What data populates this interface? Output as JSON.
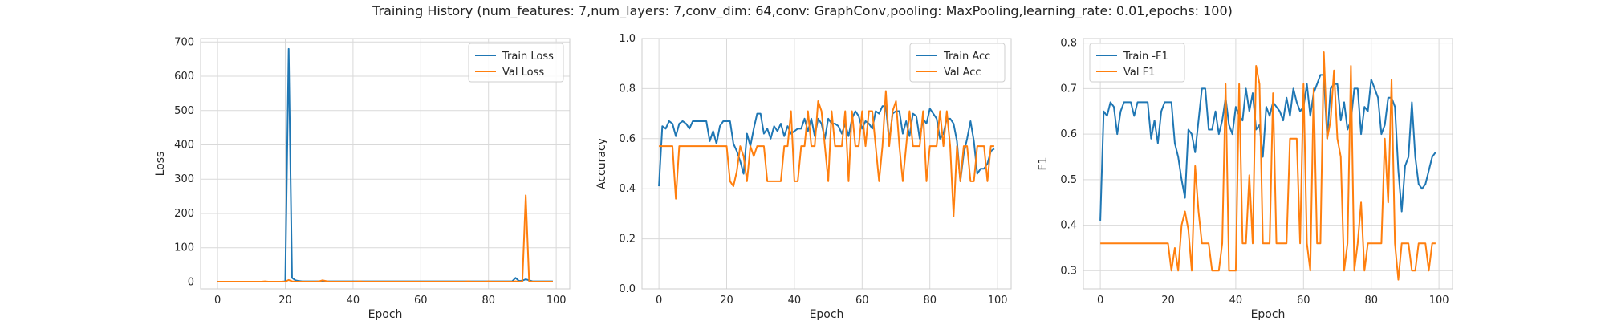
{
  "title": "Training History (num_features: 7,num_layers: 7,conv_dim: 64,conv: GraphConv,pooling: MaxPooling,learning_rate: 0.01,epochs: 100)",
  "colors": {
    "train": "#1f77b4",
    "val": "#ff7f0e",
    "grid": "#d9d9d9",
    "frame": "#cccccc"
  },
  "chart_data": [
    {
      "type": "line",
      "xlabel": "Epoch",
      "ylabel": "Loss",
      "xlim": [
        -5,
        104
      ],
      "ylim": [
        -20,
        710
      ],
      "xticks": [
        0,
        20,
        40,
        60,
        80,
        100
      ],
      "yticks": [
        0,
        100,
        200,
        300,
        400,
        500,
        600,
        700
      ],
      "grid": true,
      "legend": "top-right",
      "series": [
        {
          "name": "Train Loss",
          "values": [
            1,
            1,
            1,
            1,
            1,
            1,
            1,
            1,
            1,
            1,
            1,
            1,
            1,
            1,
            1,
            1,
            1,
            1,
            1,
            1,
            2,
            680,
            12,
            5,
            3,
            2,
            2,
            2,
            2,
            2,
            2,
            2,
            2,
            2,
            2,
            2,
            2,
            2,
            2,
            2,
            2,
            2,
            2,
            2,
            2,
            2,
            2,
            2,
            2,
            2,
            2,
            2,
            2,
            2,
            2,
            2,
            2,
            2,
            2,
            2,
            2,
            2,
            2,
            2,
            2,
            2,
            2,
            2,
            2,
            2,
            2,
            2,
            2,
            2,
            2,
            2,
            2,
            2,
            2,
            2,
            2,
            2,
            2,
            2,
            2,
            2,
            2,
            2,
            12,
            3,
            4,
            8,
            5,
            2,
            2,
            2,
            2,
            2,
            2,
            2
          ]
        },
        {
          "name": "Val Loss",
          "values": [
            1,
            1,
            1,
            1,
            1,
            1,
            1,
            1,
            1,
            1,
            1,
            1,
            1,
            1,
            2,
            1,
            1,
            1,
            1,
            1,
            1,
            6,
            2,
            1,
            1,
            1,
            1,
            1,
            1,
            1,
            2,
            5,
            3,
            1,
            1,
            1,
            1,
            1,
            1,
            1,
            1,
            1,
            2,
            1,
            1,
            1,
            1,
            1,
            1,
            1,
            1,
            1,
            1,
            1,
            1,
            1,
            1,
            1,
            1,
            1,
            1,
            1,
            1,
            1,
            1,
            1,
            1,
            1,
            1,
            1,
            1,
            1,
            1,
            1,
            2,
            1,
            1,
            1,
            1,
            1,
            2,
            1,
            1,
            1,
            1,
            1,
            1,
            1,
            2,
            1,
            2,
            253,
            2,
            1,
            1,
            1,
            1,
            1,
            1,
            1
          ]
        }
      ]
    },
    {
      "type": "line",
      "xlabel": "Epoch",
      "ylabel": "Accuracy",
      "xlim": [
        -5,
        104
      ],
      "ylim": [
        0.0,
        1.0
      ],
      "xticks": [
        0,
        20,
        40,
        60,
        80,
        100
      ],
      "yticks": [
        0.0,
        0.2,
        0.4,
        0.6,
        0.8,
        1.0
      ],
      "grid": true,
      "legend": "top-right",
      "series": [
        {
          "name": "Train Acc",
          "values": [
            0.41,
            0.65,
            0.64,
            0.67,
            0.66,
            0.61,
            0.66,
            0.67,
            0.66,
            0.64,
            0.67,
            0.67,
            0.67,
            0.67,
            0.67,
            0.59,
            0.63,
            0.58,
            0.65,
            0.67,
            0.67,
            0.67,
            0.58,
            0.55,
            0.51,
            0.46,
            0.62,
            0.57,
            0.64,
            0.7,
            0.7,
            0.62,
            0.64,
            0.6,
            0.65,
            0.63,
            0.66,
            0.61,
            0.65,
            0.62,
            0.63,
            0.64,
            0.64,
            0.68,
            0.63,
            0.68,
            0.61,
            0.68,
            0.66,
            0.6,
            0.68,
            0.66,
            0.66,
            0.65,
            0.62,
            0.66,
            0.61,
            0.68,
            0.71,
            0.69,
            0.64,
            0.67,
            0.66,
            0.64,
            0.71,
            0.7,
            0.73,
            0.73,
            0.59,
            0.7,
            0.71,
            0.71,
            0.62,
            0.67,
            0.61,
            0.7,
            0.69,
            0.6,
            0.68,
            0.66,
            0.72,
            0.7,
            0.68,
            0.6,
            0.62,
            0.68,
            0.68,
            0.66,
            0.59,
            0.43,
            0.54,
            0.6,
            0.67,
            0.59,
            0.46,
            0.48,
            0.48,
            0.5,
            0.55,
            0.56
          ]
        },
        {
          "name": "Val Acc",
          "values": [
            0.57,
            0.57,
            0.57,
            0.57,
            0.57,
            0.36,
            0.57,
            0.57,
            0.57,
            0.57,
            0.57,
            0.57,
            0.57,
            0.57,
            0.57,
            0.57,
            0.57,
            0.57,
            0.57,
            0.57,
            0.57,
            0.43,
            0.41,
            0.47,
            0.57,
            0.53,
            0.43,
            0.57,
            0.53,
            0.57,
            0.57,
            0.57,
            0.43,
            0.43,
            0.43,
            0.43,
            0.43,
            0.57,
            0.57,
            0.71,
            0.43,
            0.43,
            0.57,
            0.57,
            0.71,
            0.57,
            0.57,
            0.75,
            0.71,
            0.57,
            0.43,
            0.71,
            0.57,
            0.57,
            0.57,
            0.71,
            0.43,
            0.71,
            0.57,
            0.57,
            0.71,
            0.57,
            0.71,
            0.71,
            0.57,
            0.43,
            0.57,
            0.79,
            0.57,
            0.71,
            0.75,
            0.57,
            0.43,
            0.57,
            0.71,
            0.57,
            0.57,
            0.57,
            0.71,
            0.43,
            0.57,
            0.57,
            0.57,
            0.71,
            0.57,
            0.71,
            0.57,
            0.29,
            0.57,
            0.43,
            0.57,
            0.57,
            0.43,
            0.43,
            0.57,
            0.57,
            0.57,
            0.43,
            0.57,
            0.57
          ]
        }
      ]
    },
    {
      "type": "line",
      "xlabel": "Epoch",
      "ylabel": "F1",
      "xlim": [
        -5,
        104
      ],
      "ylim": [
        0.26,
        0.81
      ],
      "xticks": [
        0,
        20,
        40,
        60,
        80,
        100
      ],
      "yticks": [
        0.3,
        0.4,
        0.5,
        0.6,
        0.7,
        0.8
      ],
      "grid": true,
      "legend": "top-left",
      "series": [
        {
          "name": "Train -F1",
          "values": [
            0.41,
            0.65,
            0.64,
            0.67,
            0.66,
            0.6,
            0.65,
            0.67,
            0.67,
            0.67,
            0.64,
            0.67,
            0.67,
            0.67,
            0.67,
            0.59,
            0.63,
            0.58,
            0.65,
            0.67,
            0.67,
            0.67,
            0.58,
            0.55,
            0.5,
            0.46,
            0.61,
            0.6,
            0.56,
            0.63,
            0.7,
            0.7,
            0.61,
            0.61,
            0.65,
            0.6,
            0.63,
            0.68,
            0.62,
            0.6,
            0.66,
            0.64,
            0.63,
            0.7,
            0.65,
            0.69,
            0.61,
            0.62,
            0.55,
            0.66,
            0.64,
            0.67,
            0.66,
            0.65,
            0.63,
            0.68,
            0.64,
            0.7,
            0.67,
            0.65,
            0.66,
            0.71,
            0.64,
            0.69,
            0.71,
            0.73,
            0.73,
            0.59,
            0.7,
            0.71,
            0.71,
            0.63,
            0.67,
            0.61,
            0.63,
            0.7,
            0.7,
            0.6,
            0.66,
            0.65,
            0.72,
            0.7,
            0.68,
            0.6,
            0.62,
            0.68,
            0.68,
            0.66,
            0.52,
            0.43,
            0.53,
            0.55,
            0.67,
            0.55,
            0.49,
            0.48,
            0.49,
            0.52,
            0.55,
            0.56
          ]
        },
        {
          "name": "Val F1",
          "values": [
            0.36,
            0.36,
            0.36,
            0.36,
            0.36,
            0.36,
            0.36,
            0.36,
            0.36,
            0.36,
            0.36,
            0.36,
            0.36,
            0.36,
            0.36,
            0.36,
            0.36,
            0.36,
            0.36,
            0.36,
            0.36,
            0.3,
            0.35,
            0.3,
            0.4,
            0.43,
            0.39,
            0.3,
            0.53,
            0.43,
            0.36,
            0.36,
            0.36,
            0.3,
            0.3,
            0.3,
            0.36,
            0.71,
            0.3,
            0.3,
            0.3,
            0.71,
            0.36,
            0.36,
            0.51,
            0.36,
            0.75,
            0.71,
            0.36,
            0.36,
            0.36,
            0.69,
            0.36,
            0.36,
            0.36,
            0.36,
            0.59,
            0.59,
            0.59,
            0.36,
            0.71,
            0.36,
            0.3,
            0.7,
            0.36,
            0.36,
            0.78,
            0.59,
            0.63,
            0.74,
            0.59,
            0.55,
            0.3,
            0.36,
            0.75,
            0.3,
            0.36,
            0.45,
            0.3,
            0.36,
            0.36,
            0.36,
            0.36,
            0.36,
            0.59,
            0.45,
            0.72,
            0.36,
            0.28,
            0.36,
            0.36,
            0.36,
            0.3,
            0.3,
            0.36,
            0.36,
            0.36,
            0.3,
            0.36,
            0.36
          ]
        }
      ]
    }
  ]
}
